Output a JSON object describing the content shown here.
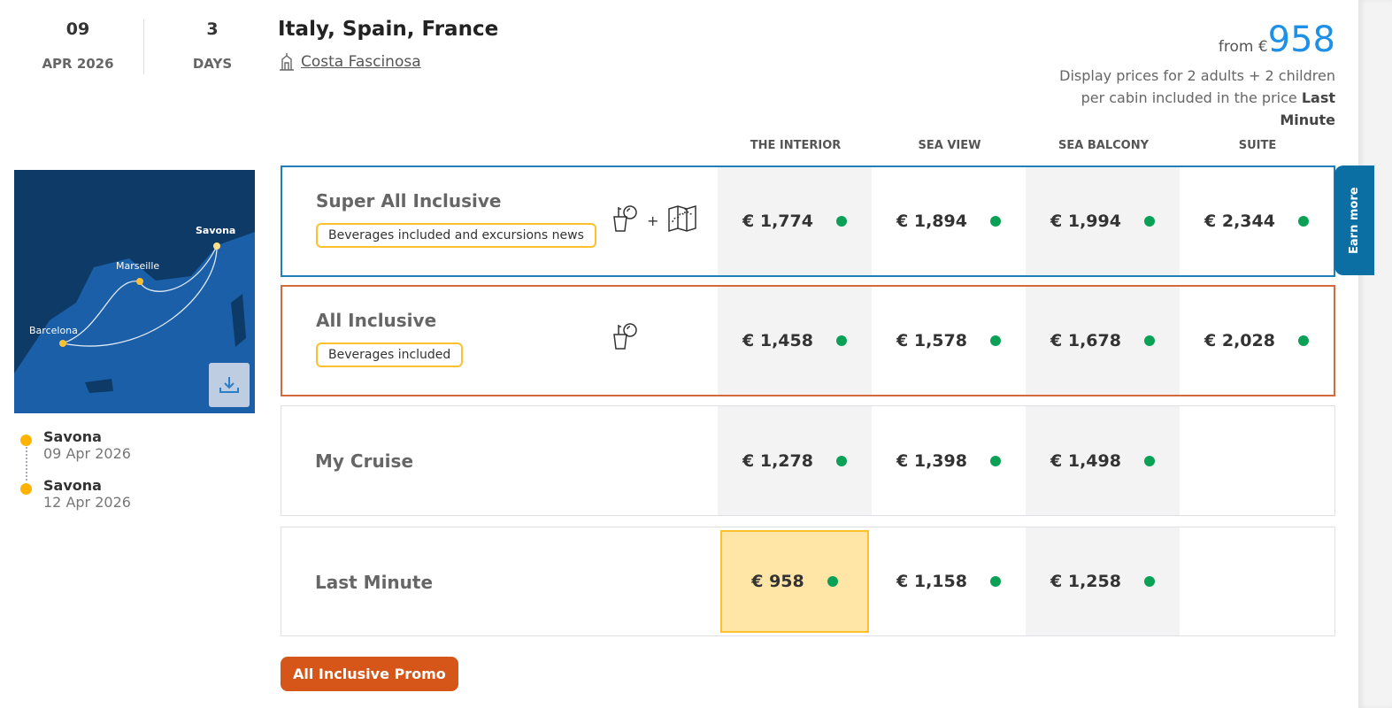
{
  "header": {
    "day": "09",
    "month_year": "APR 2026",
    "days_count": "3",
    "days_label": "DAYS",
    "title": "Italy, Spain, France",
    "ship": "Costa Fascinosa"
  },
  "price": {
    "from_label": "from €",
    "from_value": "958",
    "display_note": "Display prices for 2 adults + 2 children per cabin included in the price",
    "display_fare": "Last Minute"
  },
  "columns": [
    "THE INTERIOR",
    "SEA VIEW",
    "SEA BALCONY",
    "SUITE"
  ],
  "map": {
    "ports": [
      "Savona",
      "Marseille",
      "Barcelona"
    ]
  },
  "itinerary": [
    {
      "port": "Savona",
      "date": "09 Apr 2026"
    },
    {
      "port": "Savona",
      "date": "12 Apr 2026"
    }
  ],
  "fares": [
    {
      "name": "Super All Inclusive",
      "badge": "Beverages included and excursions news",
      "icons": [
        "drink-icon",
        "map-icon"
      ],
      "prices": [
        "€ 1,774",
        "€ 1,894",
        "€ 1,994",
        "€ 2,344"
      ],
      "style": "blue"
    },
    {
      "name": "All Inclusive",
      "badge": "Beverages included",
      "icons": [
        "drink-icon"
      ],
      "prices": [
        "€ 1,458",
        "€ 1,578",
        "€ 1,678",
        "€ 2,028"
      ],
      "style": "orange"
    },
    {
      "name": "My Cruise",
      "prices": [
        "€ 1,278",
        "€ 1,398",
        "€ 1,498"
      ]
    },
    {
      "name": "Last Minute",
      "prices": [
        "€ 958",
        "€ 1,158",
        "€ 1,258"
      ],
      "selected_column": 0
    }
  ],
  "earn_more": "Earn more",
  "promo_button": "All Inclusive Promo",
  "colors": {
    "accent_blue": "#1e90e8",
    "availability": "#0aa157",
    "promo": "#d55618",
    "highlight": "#ffe6a6"
  }
}
